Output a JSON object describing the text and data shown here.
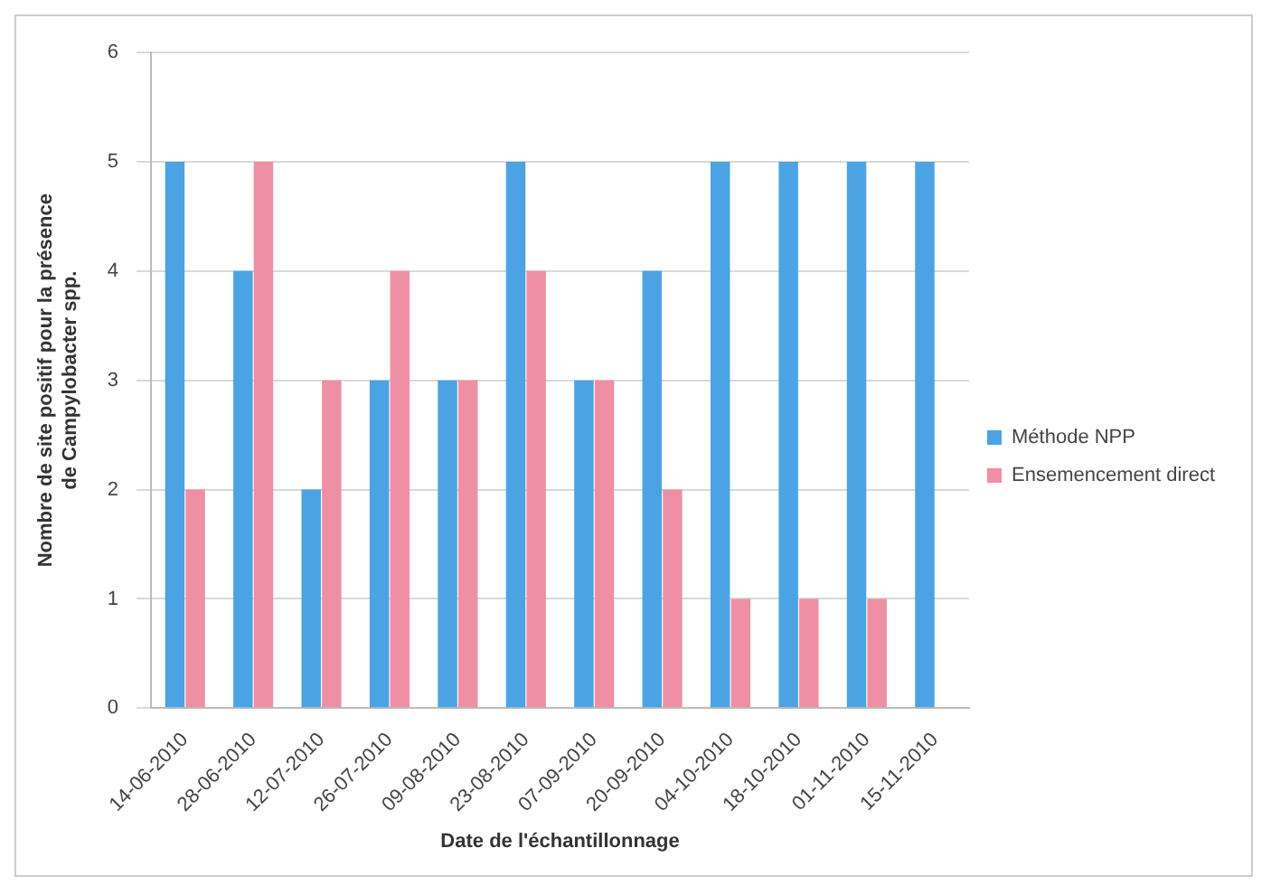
{
  "chart_data": {
    "type": "bar",
    "xlabel": "Date de l'échantillonnage",
    "ylabel": "Nombre de site positif pour la présence\nde Campylobacter spp.",
    "categories": [
      "14-06-2010",
      "28-06-2010",
      "12-07-2010",
      "26-07-2010",
      "09-08-2010",
      "23-08-2010",
      "07-09-2010",
      "20-09-2010",
      "04-10-2010",
      "18-10-2010",
      "01-11-2010",
      "15-11-2010"
    ],
    "series": [
      {
        "name": "Méthode NPP",
        "color": "#4ba3e3",
        "values": [
          5,
          4,
          2,
          3,
          3,
          5,
          3,
          4,
          5,
          5,
          5,
          5
        ]
      },
      {
        "name": "Ensemencement direct",
        "color": "#ef8fa3",
        "values": [
          2,
          5,
          3,
          4,
          3,
          4,
          3,
          2,
          1,
          1,
          1,
          0
        ]
      }
    ],
    "ylim": [
      0,
      6
    ],
    "yticks": [
      0,
      1,
      2,
      3,
      4,
      5,
      6
    ],
    "grid": "y",
    "legend": "right"
  }
}
